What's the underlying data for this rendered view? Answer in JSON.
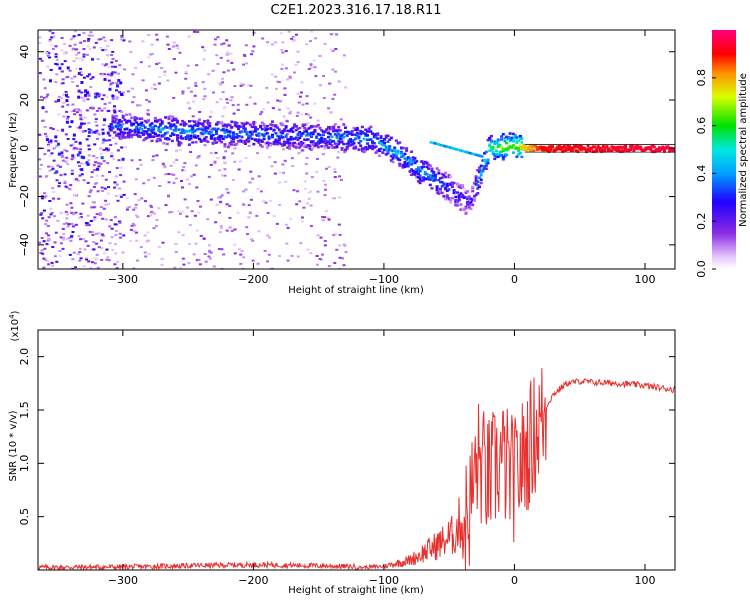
{
  "title": "C2E1.2023.316.17.18.R11",
  "colors": {
    "snr_line": "#e8302e",
    "track_low": "#6a00ff",
    "track_high": "#ff0040"
  },
  "chart_data": [
    {
      "type": "heatmap",
      "xlabel": "Height of straight line (km)",
      "ylabel": "Frequency (Hz)",
      "xlim": [
        -365,
        123
      ],
      "ylim": [
        -50,
        49
      ],
      "x_ticks": [
        -300,
        -200,
        -100,
        0,
        100
      ],
      "y_ticks": [
        40,
        20,
        0,
        -20,
        -40
      ],
      "colorbar": {
        "label": "Normalized spectral amplitude",
        "range": [
          0.0,
          1.0
        ],
        "ticks": [
          0.0,
          0.2,
          0.4,
          0.6,
          0.8
        ],
        "colormap": "white-violet-blue-cyan-green-yellow-red-magenta"
      },
      "ridge": [
        {
          "x": -300,
          "y": 9,
          "amplitude": 0.35
        },
        {
          "x": -250,
          "y": 7,
          "amplitude": 0.4
        },
        {
          "x": -200,
          "y": 6,
          "amplitude": 0.35
        },
        {
          "x": -150,
          "y": 5,
          "amplitude": 0.35
        },
        {
          "x": -110,
          "y": 4,
          "amplitude": 0.4
        },
        {
          "x": -90,
          "y": -2,
          "amplitude": 0.4
        },
        {
          "x": -70,
          "y": -10,
          "amplitude": 0.4
        },
        {
          "x": -55,
          "y": -15,
          "amplitude": 0.35
        },
        {
          "x": -35,
          "y": -23,
          "amplitude": 0.2
        },
        {
          "x": -20,
          "y": 0,
          "amplitude": 0.6
        },
        {
          "x": 0,
          "y": 1,
          "amplitude": 0.7
        },
        {
          "x": 20,
          "y": 0,
          "amplitude": 0.9
        },
        {
          "x": 123,
          "y": 0,
          "amplitude": 0.95
        }
      ]
    },
    {
      "type": "line",
      "xlabel": "Height of straight line (km)",
      "ylabel": "SNR (10 * v/v)",
      "y_multiplier": "(x10",
      "y_multiplier_exp": "4",
      "y_multiplier_close": ")",
      "xlim": [
        -365,
        123
      ],
      "ylim": [
        0,
        22500
      ],
      "x_ticks": [
        -300,
        -200,
        -100,
        0,
        100
      ],
      "y_ticks": [
        0.5,
        1.0,
        1.5,
        2.0
      ],
      "series": [
        {
          "color": "#e8302e",
          "x": [
            -365,
            -300,
            -250,
            -200,
            -150,
            -120,
            -100,
            -80,
            -60,
            -45,
            -35,
            -28,
            -20,
            -10,
            0,
            10,
            20,
            30,
            40,
            50,
            60,
            80,
            100,
            110,
            123
          ],
          "y": [
            150,
            180,
            300,
            400,
            300,
            200,
            300,
            800,
            2000,
            3000,
            6000,
            11000,
            9000,
            11000,
            9000,
            12000,
            14500,
            16500,
            17500,
            17700,
            17600,
            17500,
            17300,
            17100,
            16900
          ]
        }
      ]
    }
  ]
}
